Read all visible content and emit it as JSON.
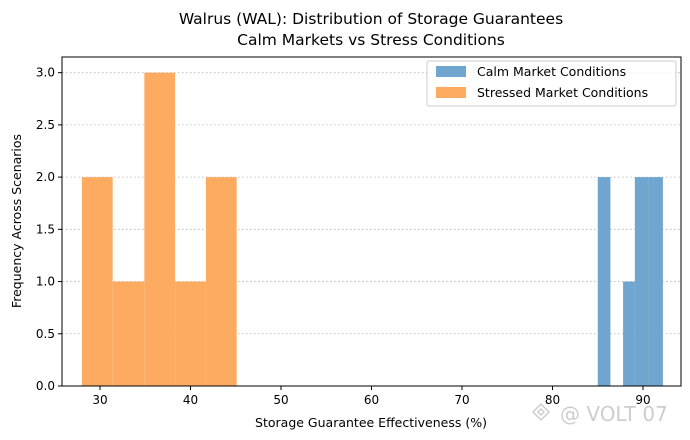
{
  "chart_data": {
    "type": "histogram",
    "title": "Walrus (WAL): Distribution of Storage Guarantees",
    "subtitle": "Calm Markets vs Stress Conditions",
    "xlabel": "Storage Guarantee Effectiveness (%)",
    "ylabel": "Frequency Across Scenarios",
    "xlim": [
      25.8,
      94.2
    ],
    "ylim": [
      0,
      3.15
    ],
    "x_ticks": [
      30,
      40,
      50,
      60,
      70,
      80,
      90
    ],
    "y_ticks": [
      0.0,
      0.5,
      1.0,
      1.5,
      2.0,
      2.5,
      3.0
    ],
    "grid": "y-dotted",
    "legend_position": "top-right",
    "series": [
      {
        "name": "Calm Market Conditions",
        "color": "#6fa5ce",
        "bins": [
          {
            "x0": 85.0,
            "x1": 86.4,
            "count": 2
          },
          {
            "x0": 86.4,
            "x1": 87.8,
            "count": 0
          },
          {
            "x0": 87.8,
            "x1": 89.1,
            "count": 1
          },
          {
            "x0": 89.1,
            "x1": 90.6,
            "count": 2
          },
          {
            "x0": 90.6,
            "x1": 92.2,
            "count": 2
          }
        ]
      },
      {
        "name": "Stressed Market Conditions",
        "color": "#feab62",
        "bins": [
          {
            "x0": 28.0,
            "x1": 31.4,
            "count": 2
          },
          {
            "x0": 31.4,
            "x1": 34.9,
            "count": 1
          },
          {
            "x0": 34.9,
            "x1": 38.3,
            "count": 3
          },
          {
            "x0": 38.3,
            "x1": 41.7,
            "count": 1
          },
          {
            "x0": 41.7,
            "x1": 45.1,
            "count": 2
          }
        ]
      }
    ]
  },
  "watermark": "@ VOLT 07"
}
